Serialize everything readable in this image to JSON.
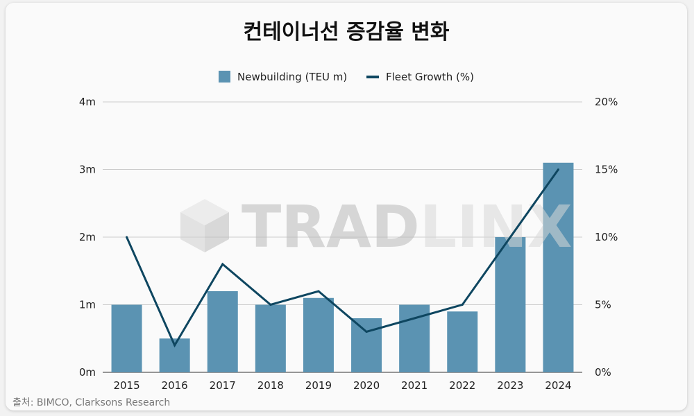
{
  "chart_data": {
    "type": "bar",
    "title": "컨테이너선 증감율 변화",
    "categories": [
      "2015",
      "2016",
      "2017",
      "2018",
      "2019",
      "2020",
      "2021",
      "2022",
      "2023",
      "2024"
    ],
    "series": [
      {
        "name": "Newbuilding (TEU m)",
        "type": "bar",
        "axis": "left",
        "color": "#5b93b2",
        "values": [
          1.0,
          0.5,
          1.2,
          1.0,
          1.1,
          0.8,
          1.0,
          0.9,
          2.0,
          3.1
        ]
      },
      {
        "name": "Fleet Growth (%)",
        "type": "line",
        "axis": "right",
        "color": "#0e4660",
        "values": [
          10,
          2,
          8,
          5,
          6,
          3,
          4,
          5,
          10,
          15
        ]
      }
    ],
    "y_left": {
      "range": [
        0,
        4
      ],
      "ticks": [
        "0m",
        "1m",
        "2m",
        "3m",
        "4m"
      ]
    },
    "y_right": {
      "range": [
        0,
        20
      ],
      "ticks": [
        "0%",
        "5%",
        "10%",
        "15%",
        "20%"
      ]
    },
    "grid": true,
    "legend_position": "top-center"
  },
  "source": "출처: BIMCO, Clarksons Research",
  "watermark": {
    "text": "TRADLINX",
    "icon": "cube-logo-icon"
  }
}
